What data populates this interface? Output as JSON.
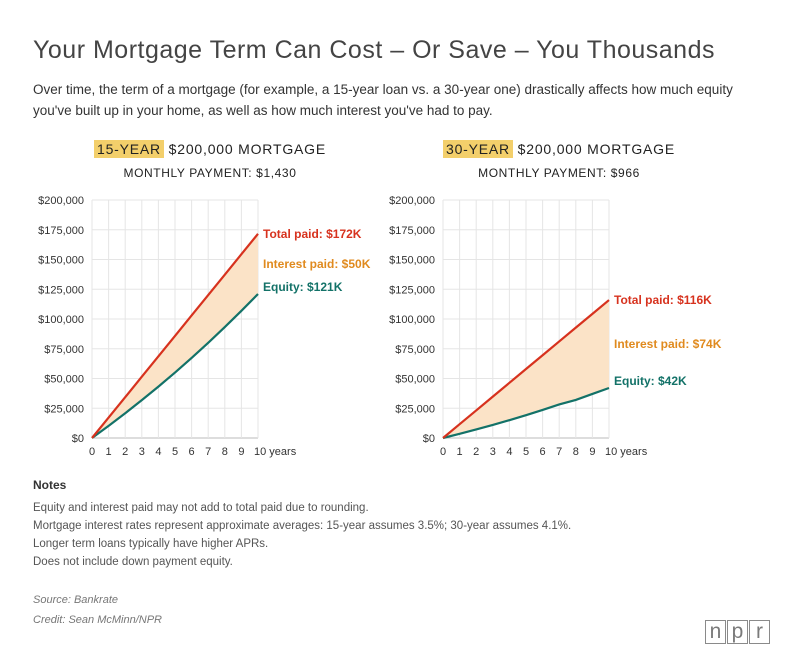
{
  "title": "Your Mortgage Term Can Cost – Or Save – You Thousands",
  "intro": "Over time, the term of a mortgage (for example, a 15-year loan vs. a 30-year one) drastically affects how much equity you've built up in your home, as well as how much interest you've had to pay.",
  "colors": {
    "total": "#d7321e",
    "interest": "#e08a1e",
    "equity": "#137268",
    "fill": "#fbe3c7",
    "highlight": "#f3cf6b",
    "grid": "#e5e5e5"
  },
  "chart_data": [
    {
      "type": "area",
      "tag": "15-YEAR",
      "heading": "$200,000 MORTGAGE",
      "subheading": "MONTHLY PAYMENT: $1,430",
      "x": [
        0,
        1,
        2,
        3,
        4,
        5,
        6,
        7,
        8,
        9,
        10
      ],
      "x_tick_labels": [
        "0",
        "1",
        "2",
        "3",
        "4",
        "5",
        "6",
        "7",
        "8",
        "9",
        "10 years"
      ],
      "y_tick_labels": [
        "$0",
        "$25,000",
        "$50,000",
        "$75,000",
        "$100,000",
        "$125,000",
        "$150,000",
        "$175,000",
        "$200,000"
      ],
      "ylim": [
        0,
        200000
      ],
      "grid": true,
      "series": [
        {
          "name": "Total paid",
          "values": [
            0,
            17160,
            34320,
            51480,
            68640,
            85800,
            102960,
            120120,
            137280,
            154440,
            171600
          ]
        },
        {
          "name": "Equity",
          "values": [
            0,
            10200,
            20800,
            31800,
            43200,
            55000,
            67300,
            80000,
            93200,
            106900,
            121000
          ]
        }
      ],
      "labels": {
        "total": "Total paid: $172K",
        "interest": "Interest paid: $50K",
        "equity": "Equity: $121K"
      }
    },
    {
      "type": "area",
      "tag": "30-YEAR",
      "heading": "$200,000 MORTGAGE",
      "subheading": "MONTHLY PAYMENT: $966",
      "x": [
        0,
        1,
        2,
        3,
        4,
        5,
        6,
        7,
        8,
        9,
        10
      ],
      "x_tick_labels": [
        "0",
        "1",
        "2",
        "3",
        "4",
        "5",
        "6",
        "7",
        "8",
        "9",
        "10 years"
      ],
      "y_tick_labels": [
        "$0",
        "$25,000",
        "$50,000",
        "$75,000",
        "$100,000",
        "$125,000",
        "$150,000",
        "$175,000",
        "$200,000"
      ],
      "ylim": [
        0,
        200000
      ],
      "grid": true,
      "series": [
        {
          "name": "Total paid",
          "values": [
            0,
            11592,
            23184,
            34776,
            46368,
            57960,
            69552,
            81144,
            92736,
            104328,
            115920
          ]
        },
        {
          "name": "Equity",
          "values": [
            0,
            3500,
            7200,
            11000,
            15000,
            19200,
            23600,
            28200,
            32000,
            37000,
            42000
          ]
        }
      ],
      "labels": {
        "total": "Total paid: $116K",
        "interest": "Interest paid: $74K",
        "equity": "Equity: $42K"
      }
    }
  ],
  "notes": {
    "heading": "Notes",
    "items": [
      "Equity and interest paid may not add to total paid due to rounding.",
      "Mortgage interest rates represent approximate averages: 15-year assumes 3.5%; 30-year assumes 4.1%.",
      "Longer term loans typically have higher APRs.",
      "Does not include down payment equity."
    ]
  },
  "source": "Source: Bankrate",
  "credit": "Credit: Sean McMinn/NPR",
  "logo": [
    "n",
    "p",
    "r"
  ]
}
